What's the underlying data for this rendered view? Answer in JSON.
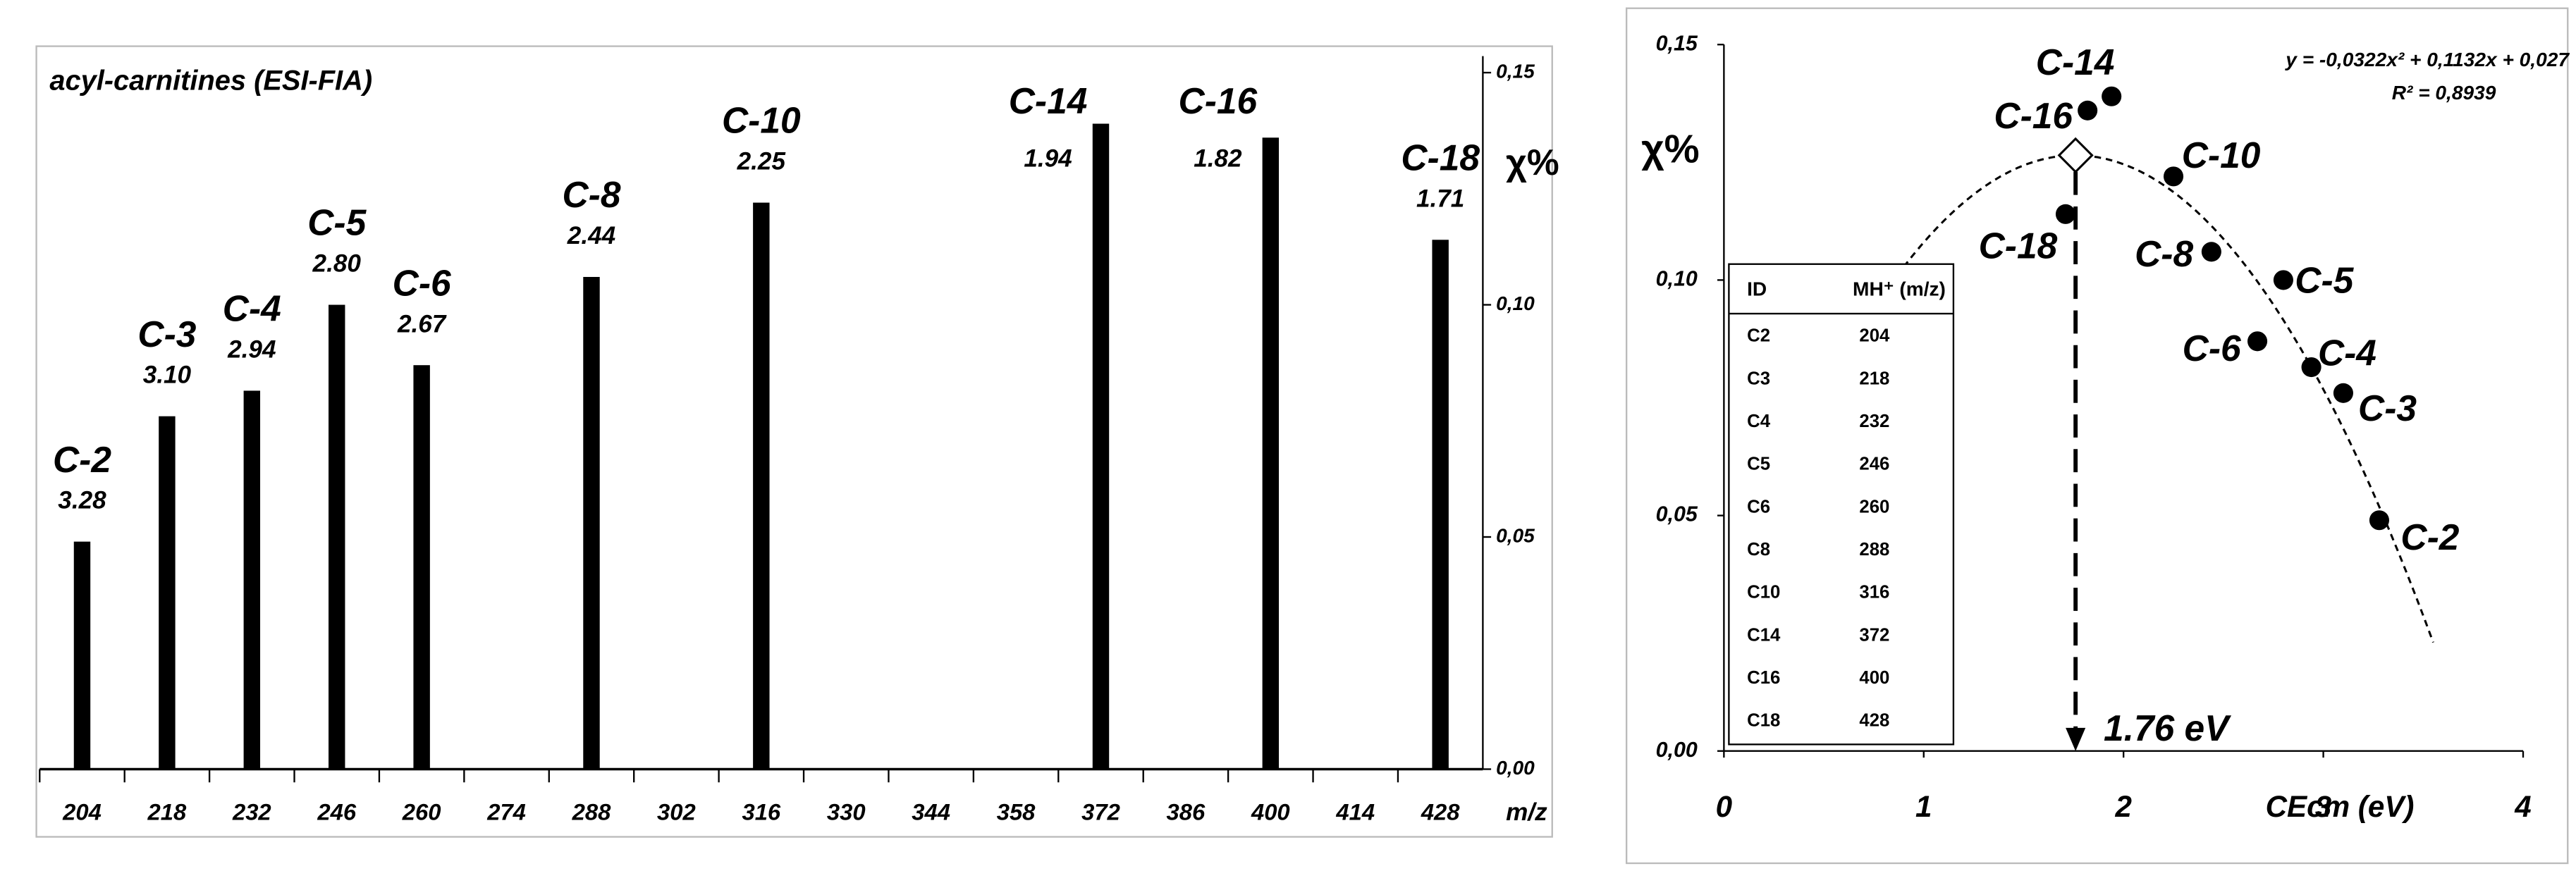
{
  "chart_data": [
    {
      "type": "bar",
      "title": "acyl-carnitines (ESI-FIA)",
      "y_label": "χ%",
      "x_label": "m/z",
      "x": [
        204,
        218,
        232,
        246,
        260,
        288,
        316,
        372,
        400,
        428
      ],
      "values": [
        0.049,
        0.076,
        0.0815,
        0.1,
        0.087,
        0.106,
        0.122,
        0.139,
        0.136,
        0.114
      ],
      "labels": [
        "C-2",
        "C-3",
        "C-4",
        "C-5",
        "C-6",
        "C-8",
        "C-10",
        "C-14",
        "C-16",
        "C-18"
      ],
      "ce_labels": [
        "3.28",
        "3.10",
        "2.94",
        "2.80",
        "2.67",
        "2.44",
        "2.25",
        "1.94",
        "1.82",
        "1.71"
      ],
      "color": "#000000",
      "xlim": [
        197,
        435
      ],
      "xticks": [
        204,
        218,
        232,
        246,
        260,
        274,
        288,
        302,
        316,
        330,
        344,
        358,
        372,
        386,
        400,
        414,
        428
      ],
      "ylim": [
        0,
        0.15
      ],
      "yticks": [
        {
          "value": 0,
          "label": "0,00"
        },
        {
          "value": 0.05,
          "label": "0,05"
        },
        {
          "value": 0.1,
          "label": "0,10"
        },
        {
          "value": 0.15,
          "label": "0,15"
        }
      ]
    },
    {
      "type": "scatter",
      "y_label": "χ%",
      "x_label": "CEcm (eV)",
      "x": [
        3.28,
        3.1,
        2.94,
        2.8,
        2.67,
        2.44,
        2.25,
        1.94,
        1.82,
        1.71
      ],
      "values": [
        0.049,
        0.076,
        0.0815,
        0.1,
        0.087,
        0.106,
        0.122,
        0.139,
        0.136,
        0.114
      ],
      "labels": [
        "C-2",
        "C-3",
        "C-4",
        "C-5",
        "C-6",
        "C-8",
        "C-10",
        "C-14",
        "C-16",
        "C-18"
      ],
      "color": "#000000",
      "xlim": [
        0,
        4
      ],
      "xticks": [
        0,
        1,
        2,
        3,
        4
      ],
      "ylim": [
        0,
        0.15
      ],
      "yticks": [
        {
          "value": 0,
          "label": "0,00"
        },
        {
          "value": 0.05,
          "label": "0,05"
        },
        {
          "value": 0.1,
          "label": "0,10"
        },
        {
          "value": 0.15,
          "label": "0,15"
        }
      ],
      "equation": "y = -0,0322x² + 0,1132x + 0,027",
      "r_squared": "R² = 0,8939",
      "fit": {
        "coefficients": [
          -0.0322,
          0.1132,
          0.027
        ],
        "range": [
          0.9,
          3.55
        ]
      },
      "optimum": {
        "x": 1.76,
        "label": "1.76 eV"
      },
      "table": {
        "header": [
          "ID",
          "MH⁺ (m/z)"
        ],
        "rows": [
          [
            "C2",
            "204"
          ],
          [
            "C3",
            "218"
          ],
          [
            "C4",
            "232"
          ],
          [
            "C5",
            "246"
          ],
          [
            "C6",
            "260"
          ],
          [
            "C8",
            "288"
          ],
          [
            "C10",
            "316"
          ],
          [
            "C14",
            "372"
          ],
          [
            "C16",
            "400"
          ],
          [
            "C18",
            "428"
          ]
        ]
      }
    }
  ]
}
